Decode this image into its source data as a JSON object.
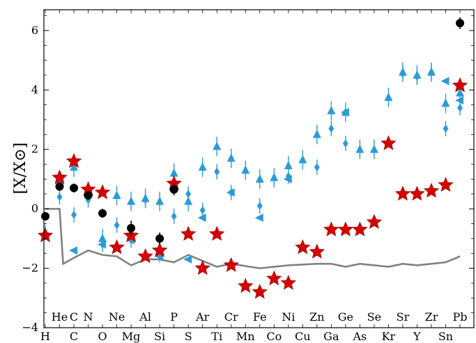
{
  "chart_data": {
    "type": "scatter",
    "title": "",
    "ylabel": "[X/X⊙]",
    "xlabel": "",
    "ylim": [
      -4,
      6.7
    ],
    "xlim": [
      1,
      82.8
    ],
    "yticks": [
      -4,
      -2,
      0,
      2,
      4,
      6
    ],
    "grid": false,
    "legend": "none",
    "elements_bottom": [
      {
        "label": "H",
        "z": 1
      },
      {
        "label": "C",
        "z": 6
      },
      {
        "label": "O",
        "z": 8
      },
      {
        "label": "Mg",
        "z": 12
      },
      {
        "label": "Si",
        "z": 14
      },
      {
        "label": "S",
        "z": 16
      },
      {
        "label": "Ti",
        "z": 22
      },
      {
        "label": "Mn",
        "z": 25
      },
      {
        "label": "Co",
        "z": 27
      },
      {
        "label": "Cu",
        "z": 29
      },
      {
        "label": "Ga",
        "z": 31
      },
      {
        "label": "As",
        "z": 33
      },
      {
        "label": "Kr",
        "z": 36
      },
      {
        "label": "Y",
        "z": 39
      },
      {
        "label": "Sn",
        "z": 50
      }
    ],
    "elements_top": [
      {
        "label": "He",
        "z": 2
      },
      {
        "label": "C",
        "z": 6
      },
      {
        "label": "N",
        "z": 7
      },
      {
        "label": "Ne",
        "z": 10
      },
      {
        "label": "Al",
        "z": 13
      },
      {
        "label": "P",
        "z": 15
      },
      {
        "label": "Ar",
        "z": 18
      },
      {
        "label": "Cr",
        "z": 24
      },
      {
        "label": "Fe",
        "z": 26
      },
      {
        "label": "Ni",
        "z": 28
      },
      {
        "label": "Zn",
        "z": 30
      },
      {
        "label": "Ge",
        "z": 32
      },
      {
        "label": "Se",
        "z": 34
      },
      {
        "label": "Sr",
        "z": 38
      },
      {
        "label": "Zr",
        "z": 40
      },
      {
        "label": "Pb",
        "z": 82
      }
    ],
    "series": [
      {
        "style": "grey-line",
        "color": "#808080",
        "points": [
          [
            1,
            0
          ],
          [
            2,
            0
          ],
          [
            3,
            -1.85
          ],
          [
            6,
            -1.65
          ],
          [
            7,
            -1.4
          ],
          [
            8,
            -1.55
          ],
          [
            10,
            -1.6
          ],
          [
            12,
            -1.9
          ],
          [
            13,
            -1.7
          ],
          [
            14,
            -1.7
          ],
          [
            15,
            -1.8
          ],
          [
            16,
            -1.55
          ],
          [
            18,
            -1.75
          ],
          [
            22,
            -1.95
          ],
          [
            24,
            -1.85
          ],
          [
            26,
            -2.0
          ],
          [
            28,
            -1.9
          ],
          [
            30,
            -1.85
          ],
          [
            31,
            -1.85
          ],
          [
            32,
            -1.95
          ],
          [
            33,
            -1.85
          ],
          [
            34,
            -1.9
          ],
          [
            36,
            -1.95
          ],
          [
            38,
            -1.85
          ],
          [
            39,
            -1.9
          ],
          [
            40,
            -1.85
          ],
          [
            50,
            -1.8
          ],
          [
            82,
            -1.6
          ]
        ]
      },
      {
        "style": "red-star",
        "color": "#d40000",
        "points": [
          [
            1,
            -0.9
          ],
          [
            2,
            1.05
          ],
          [
            6,
            1.6
          ],
          [
            7,
            0.65
          ],
          [
            8,
            0.55
          ],
          [
            10,
            -1.3
          ],
          [
            12,
            -0.9
          ],
          [
            13,
            -1.6
          ],
          [
            14,
            -1.4
          ],
          [
            15,
            0.85
          ],
          [
            16,
            -0.85
          ],
          [
            18,
            -2.0
          ],
          [
            22,
            -0.85
          ],
          [
            24,
            -1.9
          ],
          [
            25,
            -2.6
          ],
          [
            26,
            -2.8
          ],
          [
            27,
            -2.35
          ],
          [
            28,
            -2.5
          ],
          [
            29,
            -1.3
          ],
          [
            30,
            -1.45
          ],
          [
            31,
            -0.7
          ],
          [
            32,
            -0.7
          ],
          [
            33,
            -0.7
          ],
          [
            34,
            -0.45
          ],
          [
            36,
            2.2
          ],
          [
            38,
            0.5
          ],
          [
            39,
            0.5
          ],
          [
            40,
            0.6
          ],
          [
            50,
            0.8
          ],
          [
            82,
            4.15
          ]
        ]
      },
      {
        "style": "black-dot",
        "color": "#000000",
        "points": [
          [
            1,
            -0.25,
            0.15
          ],
          [
            2,
            0.75,
            0.12
          ],
          [
            6,
            0.7,
            0.15
          ],
          [
            7,
            0.45,
            0.12
          ],
          [
            8,
            -0.15,
            0.15
          ],
          [
            12,
            -0.65,
            0.25
          ],
          [
            14,
            -1.0,
            0.2
          ],
          [
            15,
            0.65,
            0.2
          ],
          [
            82,
            6.25,
            0.2
          ]
        ]
      },
      {
        "style": "blue-triangle",
        "color": "#2b9bd6",
        "points": [
          [
            2,
            0.85
          ],
          [
            6,
            1.4
          ],
          [
            7,
            0.5
          ],
          [
            8,
            -1.0
          ],
          [
            10,
            0.45
          ],
          [
            12,
            0.25
          ],
          [
            13,
            0.35
          ],
          [
            14,
            0.25
          ],
          [
            15,
            1.2
          ],
          [
            16,
            0.25
          ],
          [
            18,
            1.4
          ],
          [
            22,
            2.1
          ],
          [
            24,
            1.7
          ],
          [
            25,
            1.3
          ],
          [
            26,
            1.0
          ],
          [
            27,
            1.05
          ],
          [
            28,
            1.45
          ],
          [
            29,
            1.65
          ],
          [
            30,
            2.5
          ],
          [
            31,
            3.3
          ],
          [
            32,
            3.25
          ],
          [
            33,
            2.0
          ],
          [
            34,
            2.0
          ],
          [
            36,
            3.75
          ],
          [
            38,
            4.6
          ],
          [
            39,
            4.5
          ],
          [
            40,
            4.6
          ],
          [
            50,
            3.55
          ],
          [
            82,
            3.9
          ]
        ]
      },
      {
        "style": "blue-diamond",
        "color": "#2b9bd6",
        "points": [
          [
            1,
            -0.8
          ],
          [
            2,
            0.4
          ],
          [
            6,
            -0.2
          ],
          [
            7,
            0.3
          ],
          [
            8,
            -1.2
          ],
          [
            10,
            -0.55
          ],
          [
            12,
            -1.05
          ],
          [
            13,
            0.3
          ],
          [
            14,
            -1.55
          ],
          [
            15,
            -0.25
          ],
          [
            16,
            0.5
          ],
          [
            18,
            -0.05
          ],
          [
            22,
            1.25
          ],
          [
            24,
            0.55
          ],
          [
            26,
            0.1
          ],
          [
            28,
            1.1
          ],
          [
            30,
            1.4
          ],
          [
            31,
            2.7
          ],
          [
            32,
            2.2
          ],
          [
            38,
            4.55
          ],
          [
            39,
            4.45
          ],
          [
            40,
            4.6
          ],
          [
            50,
            2.7
          ],
          [
            82,
            3.4
          ]
        ]
      },
      {
        "style": "blue-triangle-left",
        "color": "#2b9bd6",
        "points": [
          [
            6,
            -1.4
          ],
          [
            8,
            -1.2
          ],
          [
            12,
            -1.05
          ],
          [
            14,
            -1.6
          ],
          [
            16,
            -1.7
          ],
          [
            18,
            -0.3
          ],
          [
            24,
            0.55
          ],
          [
            26,
            -0.3
          ],
          [
            28,
            1.0
          ],
          [
            32,
            3.25
          ],
          [
            50,
            4.3
          ],
          [
            82,
            3.65
          ]
        ]
      }
    ]
  }
}
